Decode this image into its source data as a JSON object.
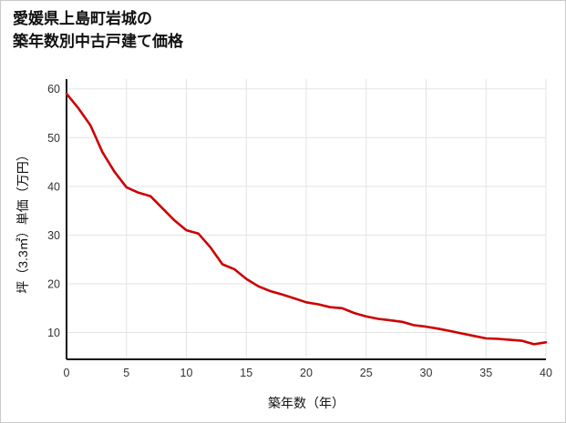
{
  "title": {
    "line1": "愛媛県上島町岩城の",
    "line2": "築年数別中古戸建て価格"
  },
  "chart_data": {
    "type": "line",
    "title": "愛媛県上島町岩城の築年数別中古戸建て価格",
    "xlabel": "築年数（年）",
    "ylabel": "坪（3.3㎡）単価（万円）",
    "x": [
      0,
      1,
      2,
      3,
      4,
      5,
      6,
      7,
      8,
      9,
      10,
      11,
      12,
      13,
      14,
      15,
      16,
      17,
      18,
      19,
      20,
      21,
      22,
      23,
      24,
      25,
      26,
      27,
      28,
      29,
      30,
      31,
      32,
      33,
      34,
      35,
      36,
      37,
      38,
      39,
      40
    ],
    "y": [
      59,
      56,
      52.5,
      47,
      43,
      39.8,
      38.7,
      38,
      35.5,
      33,
      31,
      30.3,
      27.5,
      24,
      23,
      21,
      19.5,
      18.5,
      17.8,
      17,
      16.2,
      15.8,
      15.2,
      15,
      14,
      13.3,
      12.8,
      12.5,
      12.2,
      11.5,
      11.2,
      10.8,
      10.3,
      9.8,
      9.3,
      8.8,
      8.7,
      8.5,
      8.3,
      7.6,
      8
    ],
    "xlim": [
      0,
      40
    ],
    "ylim": [
      4.5,
      62
    ],
    "x_ticks": [
      0,
      5,
      10,
      15,
      20,
      25,
      30,
      35,
      40
    ],
    "y_ticks": [
      10,
      20,
      30,
      40,
      50,
      60
    ],
    "line_color": "#cc0000",
    "axis_color": "#111111",
    "grid_color": "#e3e3e3",
    "tick_color": "#333333",
    "grid": true,
    "legend": "none"
  }
}
